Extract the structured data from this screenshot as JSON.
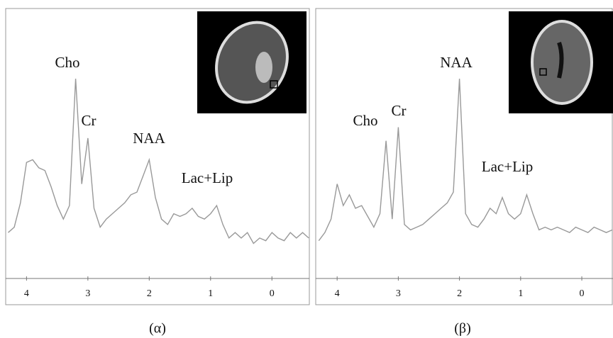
{
  "chart_data": [
    {
      "type": "line",
      "color": "#999999",
      "xlim": [
        4.34,
        -0.61
      ],
      "ylim": [
        0,
        100
      ],
      "xticks": [
        4,
        3,
        2,
        1,
        0
      ],
      "annotations": [
        "Cho",
        "Cr",
        "NAA",
        "Lac+Lip"
      ],
      "caption": "(α)",
      "x": [
        4.3,
        4.2,
        4.1,
        4.0,
        3.9,
        3.8,
        3.7,
        3.6,
        3.5,
        3.4,
        3.3,
        3.2,
        3.1,
        3.0,
        2.9,
        2.8,
        2.7,
        2.6,
        2.5,
        2.4,
        2.3,
        2.2,
        2.1,
        2.0,
        1.9,
        1.8,
        1.7,
        1.6,
        1.5,
        1.4,
        1.3,
        1.2,
        1.1,
        1.0,
        0.9,
        0.8,
        0.7,
        0.6,
        0.5,
        0.4,
        0.3,
        0.2,
        0.1,
        0.0,
        -0.1,
        -0.2,
        -0.3,
        -0.4,
        -0.5,
        -0.6
      ],
      "values": [
        17,
        19,
        28,
        43,
        44,
        41,
        40,
        34,
        27,
        22,
        27,
        74,
        35,
        52,
        26,
        19,
        22,
        24,
        26,
        28,
        31,
        32,
        38,
        44,
        30,
        22,
        20,
        24,
        23,
        24,
        26,
        23,
        22,
        24,
        27,
        20,
        15,
        17,
        15,
        17,
        13,
        15,
        14,
        17,
        15,
        14,
        17,
        15,
        17,
        15
      ]
    },
    {
      "type": "line",
      "color": "#999999",
      "xlim": [
        4.35,
        -0.51
      ],
      "ylim": [
        0,
        100
      ],
      "xticks": [
        4,
        3,
        2,
        1,
        0
      ],
      "annotations": [
        "Cho",
        "Cr",
        "NAA",
        "Lac+Lip"
      ],
      "caption": "(β)",
      "x": [
        4.3,
        4.2,
        4.1,
        4.0,
        3.9,
        3.8,
        3.7,
        3.6,
        3.5,
        3.4,
        3.3,
        3.2,
        3.1,
        3.0,
        2.9,
        2.8,
        2.7,
        2.6,
        2.5,
        2.4,
        2.3,
        2.2,
        2.1,
        2.0,
        1.9,
        1.8,
        1.7,
        1.6,
        1.5,
        1.4,
        1.3,
        1.2,
        1.1,
        1.0,
        0.9,
        0.8,
        0.7,
        0.6,
        0.5,
        0.4,
        0.3,
        0.2,
        0.1,
        0.0,
        -0.1,
        -0.2,
        -0.3,
        -0.4,
        -0.5
      ],
      "values": [
        14,
        17,
        22,
        35,
        27,
        31,
        26,
        27,
        23,
        19,
        24,
        51,
        22,
        56,
        20,
        18,
        19,
        20,
        22,
        24,
        26,
        28,
        32,
        74,
        24,
        20,
        19,
        22,
        26,
        24,
        30,
        24,
        22,
        24,
        31,
        24,
        18,
        19,
        18,
        19,
        18,
        17,
        19,
        18,
        17,
        19,
        18,
        17,
        18
      ]
    }
  ]
}
